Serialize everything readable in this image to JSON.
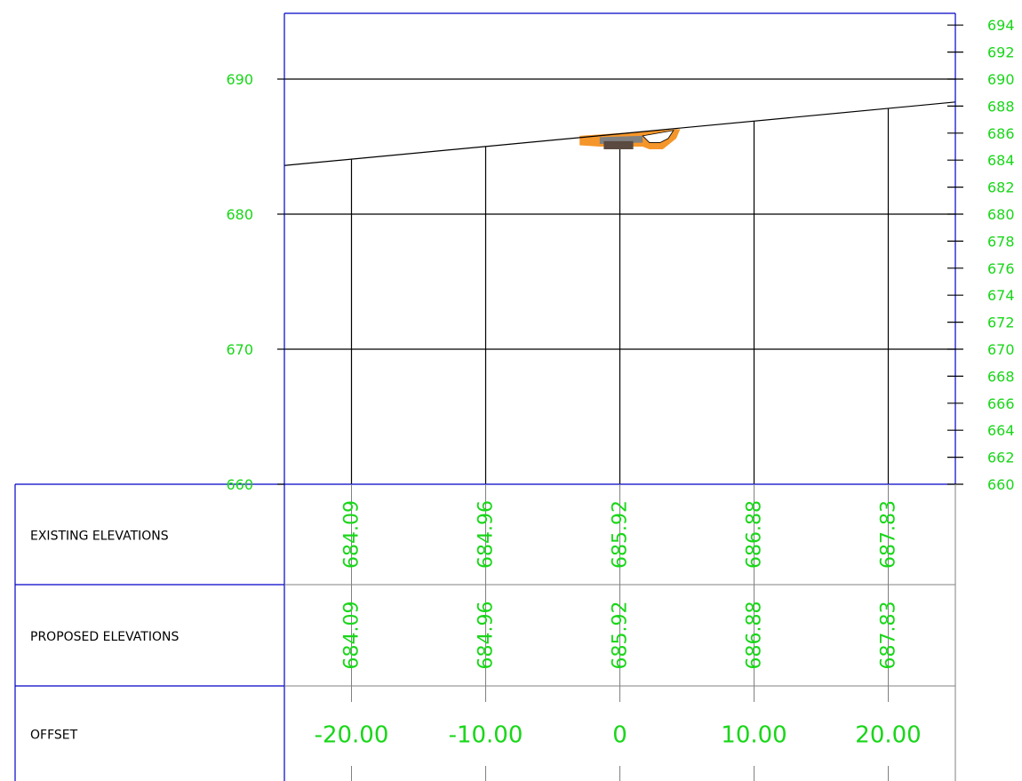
{
  "colors": {
    "frame": "#0000c8",
    "grid": "#000000",
    "text": "#19d619",
    "table_line": "#808080",
    "fill_orange": "#f5962a",
    "fill_gray": "#808080",
    "fill_dark": "#5a4a40"
  },
  "axes": {
    "elevation_min": 660,
    "elevation_max": 694,
    "offset_min": -25,
    "offset_max": 25,
    "left_ticks": [
      "690",
      "680",
      "670",
      "660"
    ],
    "right_ticks": [
      "694",
      "692",
      "690",
      "688",
      "686",
      "684",
      "682",
      "680",
      "678",
      "676",
      "674",
      "672",
      "670",
      "668",
      "666",
      "664",
      "662",
      "660"
    ]
  },
  "ground_line": [
    {
      "offset": -25,
      "elev": 683.6
    },
    {
      "offset": 25,
      "elev": 688.3
    }
  ],
  "station_offsets": [
    -20,
    -10,
    0,
    10,
    20
  ],
  "station_labels": [
    "-20.00",
    "-10.00",
    "0",
    "10.00",
    "20.00"
  ],
  "existing_elevations": [
    "684.09",
    "684.96",
    "685.92",
    "686.88",
    "687.83"
  ],
  "proposed_elevations": [
    "684.09",
    "684.96",
    "685.92",
    "686.88",
    "687.83"
  ],
  "table": {
    "row_labels": [
      "EXISTING ELEVATIONS",
      "PROPOSED ELEVATIONS",
      "OFFSET"
    ]
  }
}
